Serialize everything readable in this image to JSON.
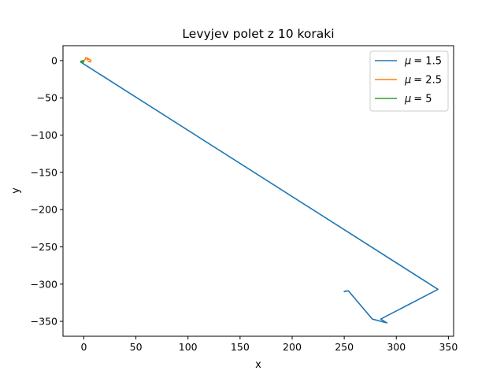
{
  "chart_data": {
    "type": "line",
    "title": "Levyjev polet z 10 koraki",
    "xlabel": "x",
    "ylabel": "y",
    "xlim": [
      -20,
      355
    ],
    "ylim": [
      -370,
      20
    ],
    "x_ticks": [
      0,
      50,
      100,
      150,
      200,
      250,
      300,
      350
    ],
    "y_ticks": [
      0,
      -50,
      -100,
      -150,
      -200,
      -250,
      -300,
      -350
    ],
    "x_tick_labels": [
      "0",
      "50",
      "100",
      "150",
      "200",
      "250",
      "300",
      "350"
    ],
    "y_tick_labels": [
      "0",
      "−50",
      "−100",
      "−150",
      "−200",
      "−250",
      "−300",
      "−350"
    ],
    "grid": false,
    "legend_position": "top-right",
    "series": [
      {
        "name": "μ = 1.5",
        "legend_symbol": "μ",
        "legend_value": "= 1.5",
        "color": "#1f77b4",
        "x": [
          0,
          -3,
          340,
          285,
          291,
          277,
          254,
          250,
          252
        ],
        "y": [
          0,
          -2,
          -307,
          -347,
          -352,
          -347,
          -309,
          -310,
          -309
        ]
      },
      {
        "name": "μ = 2.5",
        "legend_symbol": "μ",
        "legend_value": "= 2.5",
        "color": "#ff7f0e",
        "x": [
          0,
          1,
          2,
          4,
          3,
          5,
          7,
          6,
          4
        ],
        "y": [
          0,
          1,
          4,
          3,
          1,
          2,
          0,
          -2,
          -1
        ]
      },
      {
        "name": "μ = 5",
        "legend_symbol": "μ",
        "legend_value": "= 5",
        "color": "#2ca02c",
        "x": [
          0,
          -1,
          0,
          -2,
          -1,
          -3,
          -2,
          -1,
          -2
        ],
        "y": [
          0,
          -1,
          -2,
          -1,
          0,
          -1,
          -2,
          -3,
          -2
        ]
      }
    ]
  }
}
